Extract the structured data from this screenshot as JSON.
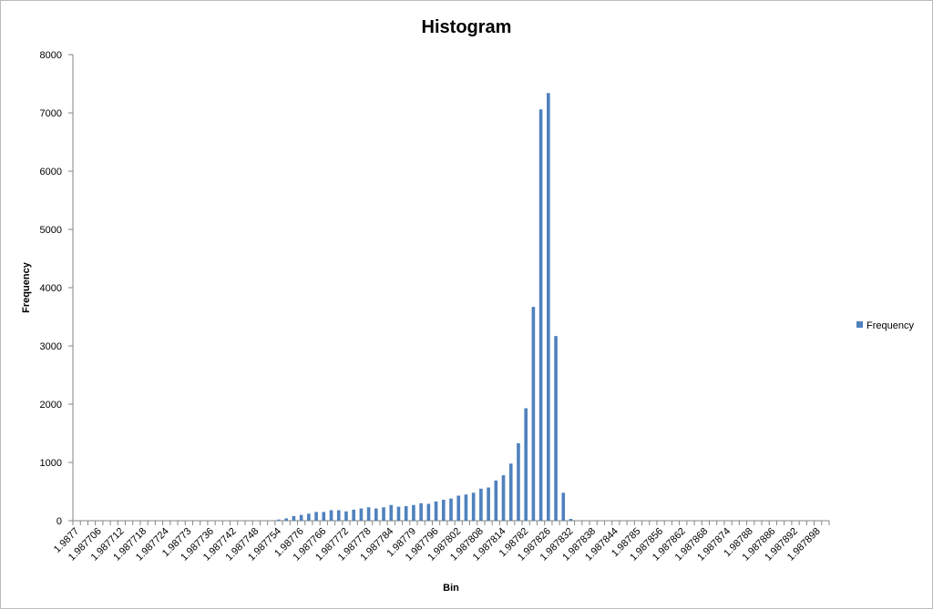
{
  "chart_data": {
    "type": "bar",
    "title": "Histogram",
    "x_label": "Bin",
    "y_label": "Frequency",
    "categories": [
      "1.9877",
      null,
      null,
      "1.987706",
      null,
      null,
      "1.987712",
      null,
      null,
      "1.987718",
      null,
      null,
      "1.987724",
      null,
      null,
      "1.98773",
      null,
      null,
      "1.987736",
      null,
      null,
      "1.987742",
      null,
      null,
      "1.987748",
      null,
      null,
      "1.987754",
      null,
      null,
      "1.98776",
      null,
      null,
      "1.987766",
      null,
      null,
      "1.987772",
      null,
      null,
      "1.987778",
      null,
      null,
      "1.987784",
      null,
      null,
      "1.98779",
      null,
      null,
      "1.987796",
      null,
      null,
      "1.987802",
      null,
      null,
      "1.987808",
      null,
      null,
      "1.987814",
      null,
      null,
      "1.98782",
      null,
      null,
      "1.987826",
      null,
      null,
      "1.987832",
      null,
      null,
      "1.987838",
      null,
      null,
      "1.987844",
      null,
      null,
      "1.98785",
      null,
      null,
      "1.987856",
      null,
      null,
      "1.987862",
      null,
      null,
      "1.987868",
      null,
      null,
      "1.987874",
      null,
      null,
      "1.98788",
      null,
      null,
      "1.987886",
      null,
      null,
      "1.987892",
      null,
      null,
      "1.987898",
      null
    ],
    "series": [
      {
        "name": "Frequency",
        "color": "#4f81bd",
        "values": [
          0,
          0,
          0,
          0,
          0,
          0,
          0,
          0,
          0,
          0,
          0,
          0,
          0,
          0,
          0,
          0,
          0,
          0,
          0,
          0,
          0,
          0,
          0,
          0,
          0,
          0,
          0,
          20,
          40,
          80,
          100,
          120,
          150,
          150,
          180,
          180,
          160,
          190,
          210,
          230,
          210,
          230,
          270,
          240,
          250,
          270,
          300,
          290,
          330,
          360,
          380,
          430,
          450,
          480,
          550,
          570,
          690,
          780,
          980,
          1330,
          1930,
          3670,
          7060,
          7340,
          3170,
          480,
          30,
          0,
          0,
          0,
          0,
          0,
          0,
          0,
          0,
          0,
          0,
          0,
          0,
          0,
          0,
          0,
          0,
          0,
          0,
          0,
          0,
          0,
          0,
          0,
          0,
          0,
          0,
          0,
          0,
          0,
          0,
          0,
          0,
          0,
          0
        ]
      }
    ],
    "ylim": [
      0,
      8000
    ],
    "yticks": [
      0,
      1000,
      2000,
      3000,
      4000,
      5000,
      6000,
      7000,
      8000
    ],
    "grid": false,
    "legend": "right"
  }
}
